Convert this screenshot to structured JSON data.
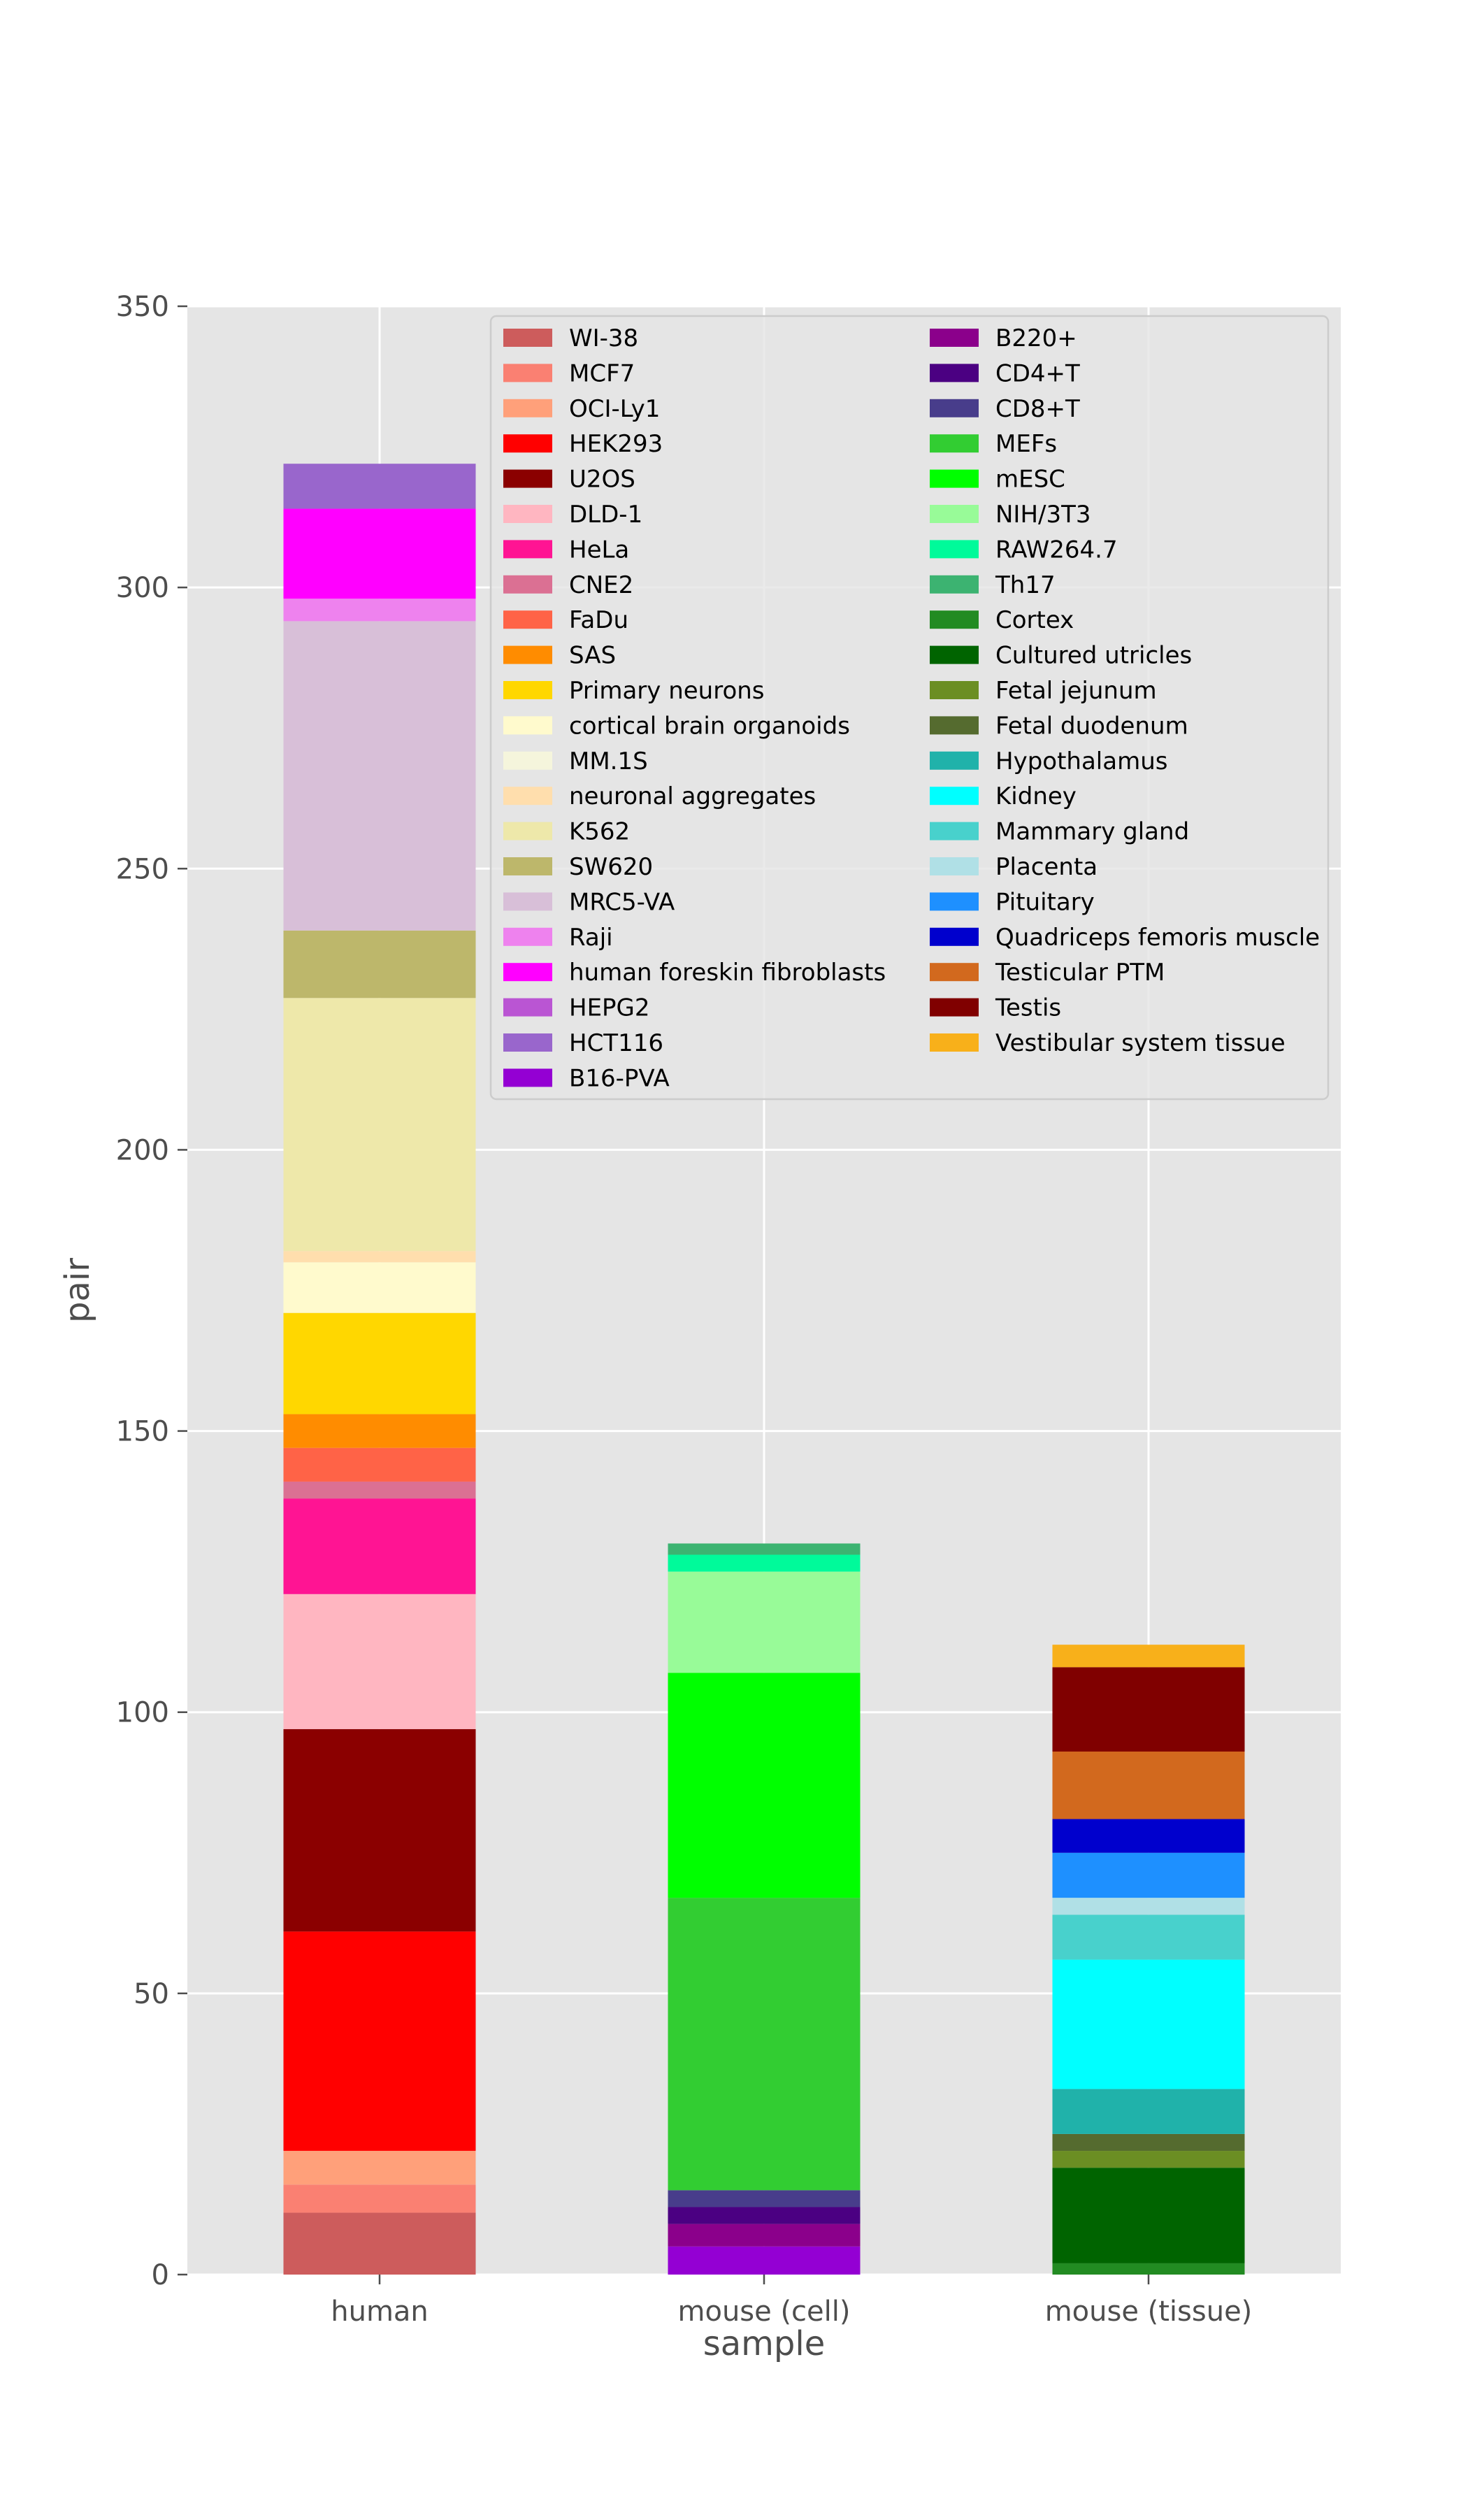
{
  "chart_data": {
    "type": "bar",
    "stacked": true,
    "title": "",
    "xlabel": "sample",
    "ylabel": "pair",
    "ylim": [
      0,
      350
    ],
    "yticks": [
      0,
      50,
      100,
      150,
      200,
      250,
      300,
      350
    ],
    "grid": true,
    "legend_position": "top-right",
    "categories": [
      "human",
      "mouse (cell)",
      "mouse (tissue)"
    ],
    "series": [
      {
        "name": "WI-38",
        "color": "#cd5c5c",
        "values": [
          11,
          0,
          0
        ]
      },
      {
        "name": "MCF7",
        "color": "#fa8072",
        "values": [
          5,
          0,
          0
        ]
      },
      {
        "name": "OCI-Ly1",
        "color": "#ffa07a",
        "values": [
          6,
          0,
          0
        ]
      },
      {
        "name": "HEK293",
        "color": "#ff0000",
        "values": [
          39,
          0,
          0
        ]
      },
      {
        "name": "U2OS",
        "color": "#8b0000",
        "values": [
          36,
          0,
          0
        ]
      },
      {
        "name": "DLD-1",
        "color": "#ffb6c1",
        "values": [
          24,
          0,
          0
        ]
      },
      {
        "name": "HeLa",
        "color": "#ff1493",
        "values": [
          17,
          0,
          0
        ]
      },
      {
        "name": "CNE2",
        "color": "#db7093",
        "values": [
          3,
          0,
          0
        ]
      },
      {
        "name": "FaDu",
        "color": "#ff6347",
        "values": [
          6,
          0,
          0
        ]
      },
      {
        "name": "SAS",
        "color": "#ff8c00",
        "values": [
          6,
          0,
          0
        ]
      },
      {
        "name": "Primary neurons",
        "color": "#ffd700",
        "values": [
          18,
          0,
          0
        ]
      },
      {
        "name": "cortical brain organoids",
        "color": "#fffacd",
        "values": [
          9,
          0,
          0
        ]
      },
      {
        "name": "MM.1S",
        "color": "#f5f5dc",
        "values": [
          0,
          0,
          0
        ]
      },
      {
        "name": "neuronal aggregates",
        "color": "#ffdead",
        "values": [
          2,
          0,
          0
        ]
      },
      {
        "name": "K562",
        "color": "#eee8aa",
        "values": [
          45,
          0,
          0
        ]
      },
      {
        "name": "SW620",
        "color": "#bdb76b",
        "values": [
          12,
          0,
          0
        ]
      },
      {
        "name": "MRC5-VA",
        "color": "#d8bfd8",
        "values": [
          55,
          0,
          0
        ]
      },
      {
        "name": "Raji",
        "color": "#ee82ee",
        "values": [
          4,
          0,
          0
        ]
      },
      {
        "name": "human foreskin fibroblasts",
        "color": "#ff00ff",
        "values": [
          16,
          0,
          0
        ]
      },
      {
        "name": "HEPG2",
        "color": "#ba55d3",
        "values": [
          0,
          0,
          0
        ]
      },
      {
        "name": "HCT116",
        "color": "#9966cc",
        "values": [
          8,
          0,
          0
        ]
      },
      {
        "name": "B16-PVA",
        "color": "#9400d3",
        "values": [
          0,
          5,
          0
        ]
      },
      {
        "name": "B220+",
        "color": "#8b008b",
        "values": [
          0,
          4,
          0
        ]
      },
      {
        "name": "CD4+T",
        "color": "#4b0082",
        "values": [
          0,
          3,
          0
        ]
      },
      {
        "name": "CD8+T",
        "color": "#483d8b",
        "values": [
          0,
          3,
          0
        ]
      },
      {
        "name": "MEFs",
        "color": "#32cd32",
        "values": [
          0,
          52,
          0
        ]
      },
      {
        "name": "mESC",
        "color": "#00ff00",
        "values": [
          0,
          40,
          0
        ]
      },
      {
        "name": "NIH/3T3",
        "color": "#98fb98",
        "values": [
          0,
          18,
          0
        ]
      },
      {
        "name": "RAW264.7",
        "color": "#00fa9a",
        "values": [
          0,
          3,
          0
        ]
      },
      {
        "name": "Th17",
        "color": "#3cb371",
        "values": [
          0,
          2,
          0
        ]
      },
      {
        "name": "Cortex",
        "color": "#228b22",
        "values": [
          0,
          0,
          2
        ]
      },
      {
        "name": "Cultured utricles",
        "color": "#006400",
        "values": [
          0,
          0,
          17
        ]
      },
      {
        "name": "Fetal jejunum",
        "color": "#6b8e23",
        "values": [
          0,
          0,
          3
        ]
      },
      {
        "name": "Fetal duodenum",
        "color": "#556b2f",
        "values": [
          0,
          0,
          3
        ]
      },
      {
        "name": "Hypothalamus",
        "color": "#20b2aa",
        "values": [
          0,
          0,
          8
        ]
      },
      {
        "name": "Kidney",
        "color": "#00ffff",
        "values": [
          0,
          0,
          23
        ]
      },
      {
        "name": "Mammary gland",
        "color": "#48d1cc",
        "values": [
          0,
          0,
          8
        ]
      },
      {
        "name": "Placenta",
        "color": "#b0e0e6",
        "values": [
          0,
          0,
          3
        ]
      },
      {
        "name": "Pituitary",
        "color": "#1e90ff",
        "values": [
          0,
          0,
          8
        ]
      },
      {
        "name": "Quadriceps femoris muscle",
        "color": "#0000cd",
        "values": [
          0,
          0,
          6
        ]
      },
      {
        "name": "Testicular PTM",
        "color": "#d2691e",
        "values": [
          0,
          0,
          12
        ]
      },
      {
        "name": "Testis",
        "color": "#800000",
        "values": [
          0,
          0,
          15
        ]
      },
      {
        "name": "Vestibular system tissue",
        "color": "#f8b01a",
        "values": [
          0,
          0,
          4
        ]
      }
    ]
  }
}
